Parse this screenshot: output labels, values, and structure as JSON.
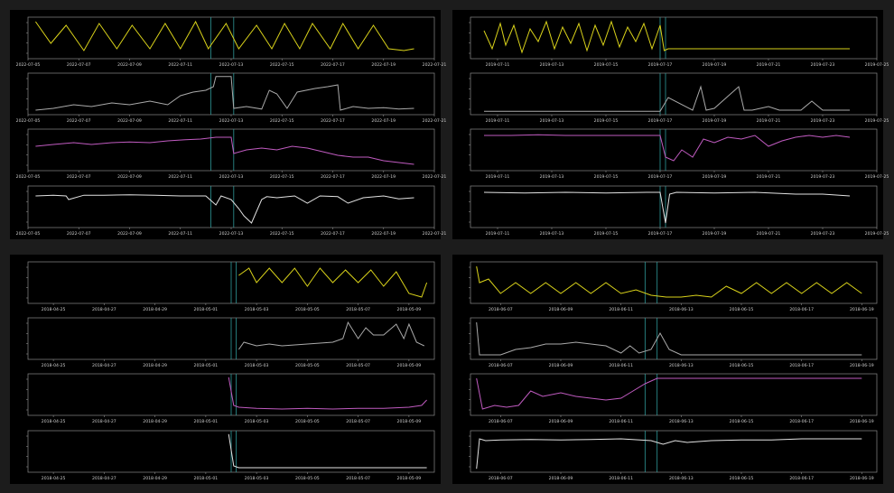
{
  "colors": {
    "yellow": "#d9d21a",
    "gray": "#aaaaaa",
    "magenta": "#c05bc0",
    "white": "#e2e2e2",
    "cyan": "#2f9a9a"
  },
  "chart_data": [
    {
      "type": "line",
      "grid": false,
      "x_ticks": [
        "2022-07-05",
        "2022-07-07",
        "2022-07-09",
        "2022-07-11",
        "2022-07-13",
        "2022-07-15",
        "2022-07-17",
        "2022-07-19",
        "2022-07-21"
      ],
      "xlim": [
        "2022-07-05",
        "2022-07-21"
      ],
      "event_markers": [
        "2022-07-12.2",
        "2022-07-13.1"
      ],
      "series": [
        {
          "color": "yellow",
          "x": [
            5.3,
            5.9,
            6.5,
            7.2,
            7.8,
            8.5,
            9.1,
            9.8,
            10.4,
            11.0,
            11.6,
            12.1,
            12.8,
            13.3,
            14.0,
            14.6,
            15.1,
            15.7,
            16.2,
            16.9,
            17.4,
            18.0,
            18.6,
            19.2,
            19.8,
            20.2
          ],
          "y": [
            0.95,
            0.35,
            0.85,
            0.15,
            0.9,
            0.2,
            0.85,
            0.2,
            0.9,
            0.2,
            0.95,
            0.2,
            0.9,
            0.2,
            0.85,
            0.2,
            0.9,
            0.2,
            0.9,
            0.2,
            0.9,
            0.2,
            0.85,
            0.2,
            0.15,
            0.2
          ]
        },
        {
          "color": "gray",
          "x": [
            5.3,
            6.0,
            6.8,
            7.5,
            8.3,
            9.0,
            9.8,
            10.5,
            11.0,
            11.5,
            12.0,
            12.3,
            12.4,
            13.0,
            13.1,
            13.6,
            14.2,
            14.5,
            14.8,
            15.2,
            15.6,
            16.3,
            16.8,
            17.2,
            17.3,
            17.8,
            18.4,
            19.0,
            19.6,
            20.2
          ],
          "y": [
            0.05,
            0.1,
            0.2,
            0.15,
            0.25,
            0.2,
            0.3,
            0.2,
            0.45,
            0.55,
            0.6,
            0.7,
            0.98,
            0.98,
            0.1,
            0.15,
            0.08,
            0.6,
            0.5,
            0.1,
            0.55,
            0.65,
            0.7,
            0.75,
            0.05,
            0.15,
            0.1,
            0.12,
            0.08,
            0.1
          ]
        },
        {
          "color": "magenta",
          "x": [
            5.3,
            6.0,
            6.8,
            7.5,
            8.3,
            9.0,
            9.8,
            10.5,
            11.2,
            11.8,
            12.4,
            13.0,
            13.1,
            13.6,
            14.2,
            14.8,
            15.4,
            16.0,
            16.6,
            17.2,
            17.8,
            18.4,
            19.0,
            19.6,
            20.2
          ],
          "y": [
            0.6,
            0.65,
            0.7,
            0.65,
            0.7,
            0.72,
            0.7,
            0.75,
            0.78,
            0.8,
            0.85,
            0.85,
            0.4,
            0.5,
            0.55,
            0.5,
            0.6,
            0.55,
            0.45,
            0.35,
            0.3,
            0.3,
            0.2,
            0.15,
            0.1
          ]
        },
        {
          "color": "white",
          "x": [
            5.3,
            6.0,
            6.5,
            6.6,
            7.2,
            8.0,
            9.0,
            10.0,
            11.0,
            12.0,
            12.4,
            12.6,
            13.0,
            13.3,
            13.5,
            13.8,
            14.2,
            14.4,
            14.8,
            15.5,
            16.0,
            16.5,
            17.2,
            17.6,
            18.2,
            19.0,
            19.6,
            20.2
          ],
          "y": [
            0.8,
            0.82,
            0.8,
            0.7,
            0.82,
            0.82,
            0.83,
            0.82,
            0.8,
            0.8,
            0.55,
            0.8,
            0.7,
            0.45,
            0.25,
            0.05,
            0.7,
            0.78,
            0.75,
            0.8,
            0.6,
            0.8,
            0.78,
            0.6,
            0.75,
            0.8,
            0.72,
            0.75
          ]
        }
      ]
    },
    {
      "type": "line",
      "grid": false,
      "x_ticks": [
        "2019-07-11",
        "2019-07-13",
        "2019-07-15",
        "2019-07-17",
        "2019-07-19",
        "2019-07-21",
        "2019-07-23",
        "2019-07-25"
      ],
      "xlim": [
        "2019-07-10",
        "2019-07-25"
      ],
      "event_markers": [
        "2019-07-17.0",
        "2019-07-17.2"
      ],
      "series": [
        {
          "color": "yellow",
          "x": [
            10.5,
            10.8,
            11.1,
            11.3,
            11.6,
            11.9,
            12.2,
            12.5,
            12.8,
            13.1,
            13.4,
            13.7,
            14.0,
            14.3,
            14.6,
            14.9,
            15.2,
            15.5,
            15.8,
            16.1,
            16.4,
            16.7,
            17.0,
            17.15,
            17.3,
            24.0
          ],
          "y": [
            0.7,
            0.2,
            0.9,
            0.3,
            0.85,
            0.1,
            0.75,
            0.4,
            0.95,
            0.2,
            0.8,
            0.35,
            0.9,
            0.15,
            0.85,
            0.3,
            0.95,
            0.25,
            0.8,
            0.4,
            0.9,
            0.2,
            0.85,
            0.15,
            0.2,
            0.2
          ]
        },
        {
          "color": "gray",
          "x": [
            10.5,
            17.0,
            17.3,
            18.2,
            18.5,
            18.7,
            19.0,
            19.6,
            19.9,
            20.1,
            20.4,
            21.0,
            21.4,
            21.8,
            22.2,
            22.6,
            23.0,
            23.2,
            23.5,
            24.0
          ],
          "y": [
            0.02,
            0.02,
            0.4,
            0.05,
            0.7,
            0.05,
            0.1,
            0.5,
            0.7,
            0.05,
            0.05,
            0.15,
            0.05,
            0.05,
            0.05,
            0.3,
            0.05,
            0.05,
            0.05,
            0.05
          ]
        },
        {
          "color": "magenta",
          "x": [
            10.5,
            11.5,
            12.5,
            13.5,
            14.5,
            15.5,
            16.5,
            17.0,
            17.2,
            17.5,
            17.8,
            18.2,
            18.6,
            19.0,
            19.5,
            20.0,
            20.5,
            21.0,
            21.5,
            22.0,
            22.5,
            23.0,
            23.5,
            24.0
          ],
          "y": [
            0.9,
            0.9,
            0.92,
            0.9,
            0.9,
            0.9,
            0.9,
            0.9,
            0.3,
            0.2,
            0.5,
            0.3,
            0.8,
            0.7,
            0.85,
            0.8,
            0.9,
            0.6,
            0.75,
            0.85,
            0.9,
            0.85,
            0.9,
            0.85
          ]
        },
        {
          "color": "white",
          "x": [
            10.5,
            12.0,
            13.5,
            15.0,
            16.5,
            17.0,
            17.2,
            17.35,
            17.6,
            19.0,
            20.5,
            22.0,
            23.0,
            24.0
          ],
          "y": [
            0.9,
            0.88,
            0.9,
            0.88,
            0.9,
            0.9,
            0.05,
            0.85,
            0.9,
            0.88,
            0.9,
            0.85,
            0.85,
            0.8
          ]
        }
      ]
    },
    {
      "type": "line",
      "grid": false,
      "x_ticks": [
        "2018-04-25",
        "2018-04-27",
        "2018-04-29",
        "2018-05-01",
        "2018-05-03",
        "2018-05-05",
        "2018-05-07",
        "2018-05-09"
      ],
      "xlim": [
        "2018-04-24",
        "2018-05-10"
      ],
      "event_markers": [
        "2018-05-02.0",
        "2018-05-02.2"
      ],
      "series": [
        {
          "color": "yellow",
          "x": [
            2.3,
            2.7,
            3.0,
            3.5,
            4.0,
            4.5,
            5.0,
            5.5,
            6.0,
            6.5,
            7.0,
            7.5,
            8.0,
            8.5,
            9.0,
            9.5,
            9.7
          ],
          "y": [
            0.7,
            0.9,
            0.5,
            0.9,
            0.5,
            0.9,
            0.4,
            0.9,
            0.5,
            0.85,
            0.5,
            0.85,
            0.4,
            0.8,
            0.2,
            0.1,
            0.5
          ]
        },
        {
          "color": "gray",
          "x": [
            2.3,
            2.5,
            3.0,
            3.5,
            4.0,
            5.0,
            6.0,
            6.4,
            6.6,
            7.0,
            7.3,
            7.6,
            8.0,
            8.5,
            8.8,
            9.0,
            9.3,
            9.6
          ],
          "y": [
            0.2,
            0.4,
            0.3,
            0.35,
            0.3,
            0.35,
            0.4,
            0.5,
            0.95,
            0.5,
            0.8,
            0.6,
            0.6,
            0.9,
            0.5,
            0.9,
            0.4,
            0.3
          ]
        },
        {
          "color": "magenta",
          "x": [
            1.9,
            2.1,
            2.3,
            3.0,
            4.0,
            5.0,
            6.0,
            7.0,
            8.0,
            9.0,
            9.5,
            9.7
          ],
          "y": [
            0.98,
            0.2,
            0.15,
            0.12,
            0.1,
            0.12,
            0.1,
            0.12,
            0.12,
            0.15,
            0.2,
            0.35
          ]
        },
        {
          "color": "white",
          "x": [
            1.9,
            2.1,
            2.3,
            3.0,
            5.0,
            7.0,
            9.0,
            9.7
          ],
          "y": [
            0.98,
            0.1,
            0.05,
            0.05,
            0.05,
            0.05,
            0.05,
            0.05
          ]
        }
      ]
    },
    {
      "type": "line",
      "grid": false,
      "x_ticks": [
        "2018-06-07",
        "2018-06-09",
        "2018-06-11",
        "2018-06-13",
        "2018-06-15",
        "2018-06-17",
        "2018-06-19"
      ],
      "xlim": [
        "2018-06-06",
        "2018-06-19.5"
      ],
      "event_markers": [
        "2018-06-11.8",
        "2018-06-12.2"
      ],
      "series": [
        {
          "color": "yellow",
          "x": [
            6.2,
            6.3,
            6.6,
            7.0,
            7.5,
            8.0,
            8.5,
            9.0,
            9.5,
            10.0,
            10.5,
            11.0,
            11.5,
            12.0,
            12.5,
            13.0,
            13.5,
            14.0,
            14.5,
            15.0,
            15.5,
            16.0,
            16.5,
            17.0,
            17.5,
            18.0,
            18.5,
            19.0
          ],
          "y": [
            0.95,
            0.5,
            0.6,
            0.2,
            0.5,
            0.2,
            0.5,
            0.2,
            0.5,
            0.2,
            0.5,
            0.2,
            0.3,
            0.15,
            0.1,
            0.1,
            0.15,
            0.1,
            0.4,
            0.2,
            0.5,
            0.2,
            0.5,
            0.2,
            0.5,
            0.2,
            0.5,
            0.2
          ]
        },
        {
          "color": "gray",
          "x": [
            6.2,
            6.3,
            6.6,
            7.0,
            7.5,
            8.0,
            8.5,
            9.0,
            9.5,
            10.0,
            10.5,
            11.0,
            11.3,
            11.6,
            12.0,
            12.3,
            12.6,
            13.0,
            14.0,
            15.0,
            16.0,
            17.0,
            18.0,
            19.0
          ],
          "y": [
            0.95,
            0.05,
            0.05,
            0.05,
            0.2,
            0.25,
            0.35,
            0.35,
            0.4,
            0.35,
            0.3,
            0.1,
            0.3,
            0.1,
            0.2,
            0.65,
            0.2,
            0.05,
            0.05,
            0.05,
            0.05,
            0.05,
            0.05,
            0.05
          ]
        },
        {
          "color": "magenta",
          "x": [
            6.2,
            6.4,
            6.8,
            7.2,
            7.6,
            8.0,
            8.4,
            9.0,
            9.5,
            10.0,
            10.5,
            11.0,
            11.4,
            11.8,
            12.2,
            13.0,
            14.0,
            15.0,
            16.0,
            17.0,
            18.0,
            19.0
          ],
          "y": [
            0.95,
            0.1,
            0.2,
            0.15,
            0.2,
            0.6,
            0.45,
            0.55,
            0.45,
            0.4,
            0.35,
            0.4,
            0.6,
            0.8,
            0.95,
            0.95,
            0.95,
            0.95,
            0.95,
            0.95,
            0.95,
            0.95
          ]
        },
        {
          "color": "white",
          "x": [
            6.2,
            6.3,
            6.5,
            7.0,
            8.0,
            9.0,
            10.0,
            11.0,
            12.0,
            12.4,
            12.8,
            13.2,
            14.0,
            15.0,
            16.0,
            17.0,
            18.0,
            19.0
          ],
          "y": [
            0.02,
            0.85,
            0.8,
            0.82,
            0.83,
            0.82,
            0.83,
            0.85,
            0.8,
            0.7,
            0.8,
            0.75,
            0.8,
            0.82,
            0.82,
            0.85,
            0.85,
            0.85
          ]
        }
      ]
    }
  ]
}
